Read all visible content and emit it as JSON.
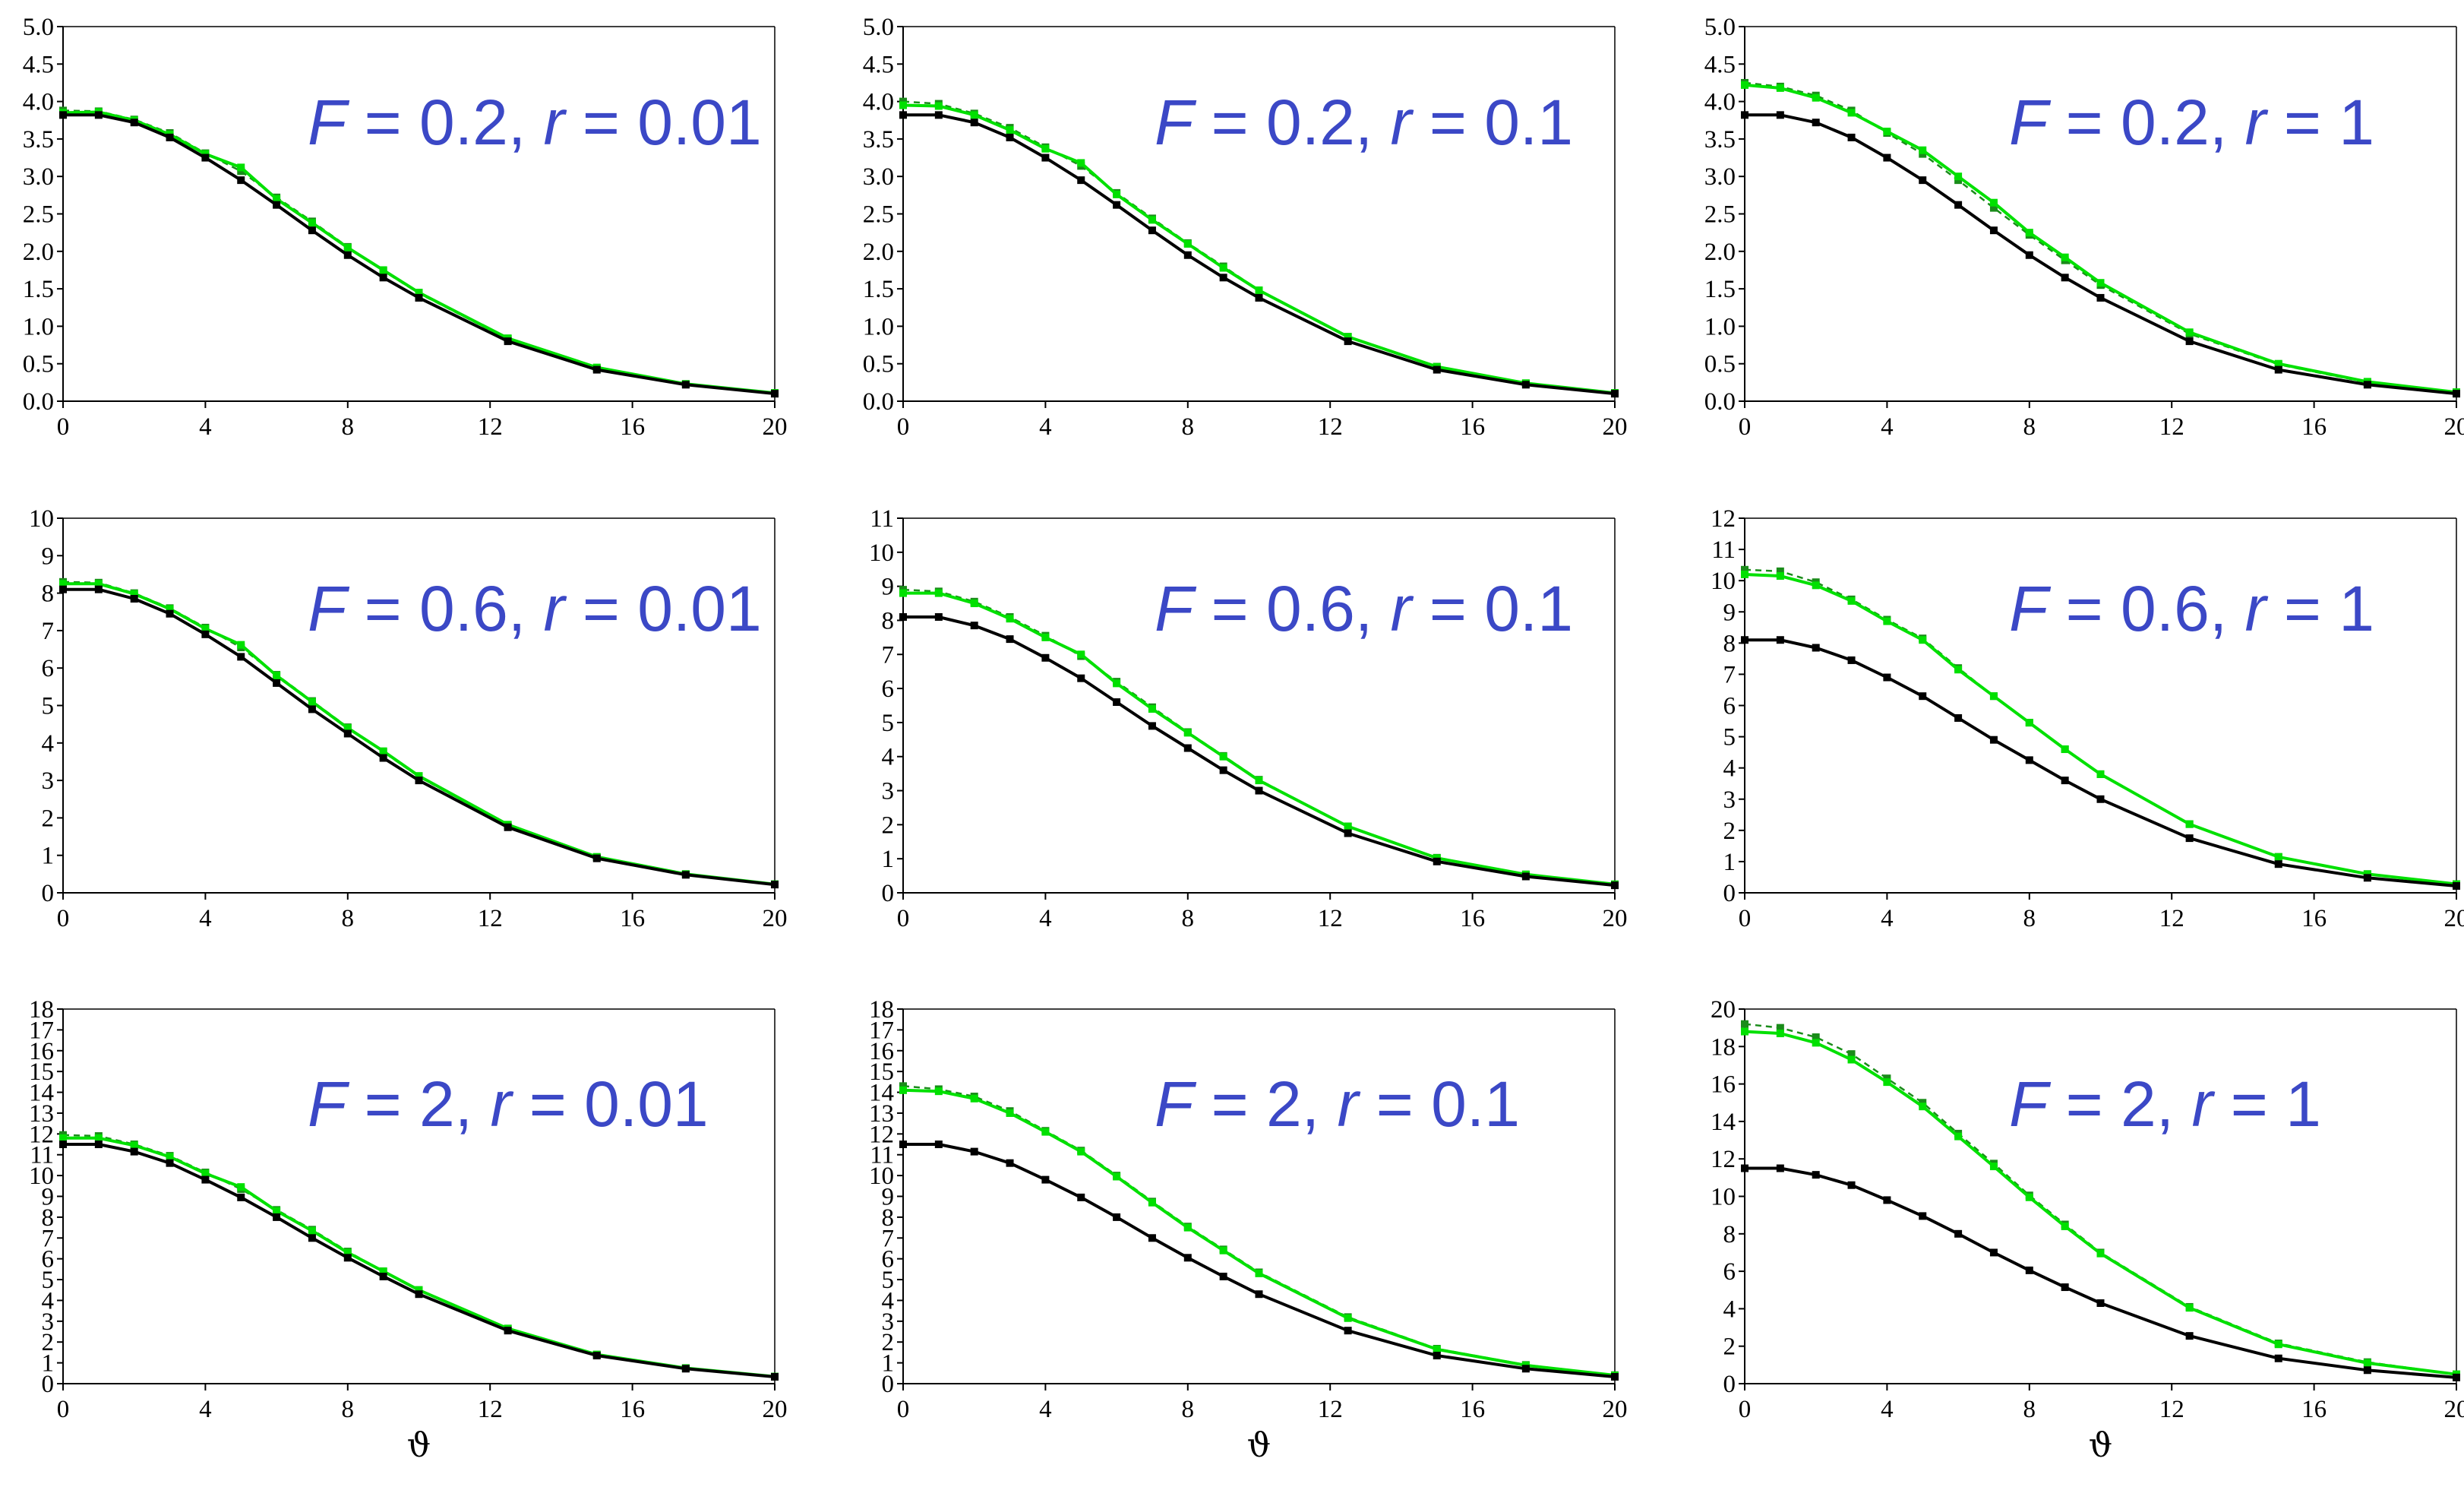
{
  "colors": {
    "baseline": "#000000",
    "model": "#00e000",
    "model_dashed": "#1a8c1a",
    "annotation": "#3b48c6"
  },
  "x_axis_symbol": "ϑ",
  "chart_data": [
    {
      "type": "line",
      "id": "p1",
      "F": "0.2",
      "r": "0.01",
      "title_F": "F",
      "title_eq1": " = 0.2, ",
      "title_r": "r",
      "title_eq2": " = 0.01",
      "xlim": [
        0,
        20
      ],
      "xticks": [
        0,
        4,
        8,
        12,
        16,
        20
      ],
      "ylim": [
        0,
        5
      ],
      "yticks": [
        "0.0",
        "0.5",
        "1.0",
        "1.5",
        "2.0",
        "2.5",
        "3.0",
        "3.5",
        "4.0",
        "4.5",
        "5.0"
      ],
      "x": [
        0,
        1,
        2,
        3,
        4,
        5,
        6,
        7,
        8,
        9,
        10,
        12.5,
        15,
        17.5,
        20
      ],
      "series": [
        {
          "name": "black",
          "values": [
            3.82,
            3.82,
            3.72,
            3.52,
            3.25,
            2.95,
            2.62,
            2.28,
            1.95,
            1.65,
            1.38,
            0.8,
            0.42,
            0.22,
            0.1
          ]
        },
        {
          "name": "green",
          "values": [
            3.85,
            3.86,
            3.75,
            3.56,
            3.3,
            3.12,
            2.7,
            2.38,
            2.05,
            1.75,
            1.45,
            0.84,
            0.45,
            0.23,
            0.11
          ]
        },
        {
          "name": "green-dashed",
          "values": [
            3.88,
            3.87,
            3.76,
            3.58,
            3.31,
            3.07,
            2.72,
            2.4,
            2.06,
            1.74,
            1.44,
            0.83,
            0.44,
            0.23,
            0.11
          ]
        }
      ]
    },
    {
      "type": "line",
      "id": "p2",
      "F": "0.2",
      "r": "0.1",
      "title_F": "F",
      "title_eq1": " = 0.2, ",
      "title_r": "r",
      "title_eq2": " = 0.1",
      "xlim": [
        0,
        20
      ],
      "xticks": [
        0,
        4,
        8,
        12,
        16,
        20
      ],
      "ylim": [
        0,
        5
      ],
      "yticks": [
        "0.0",
        "0.5",
        "1.0",
        "1.5",
        "2.0",
        "2.5",
        "3.0",
        "3.5",
        "4.0",
        "4.5",
        "5.0"
      ],
      "x": [
        0,
        1,
        2,
        3,
        4,
        5,
        6,
        7,
        8,
        9,
        10,
        12.5,
        15,
        17.5,
        20
      ],
      "series": [
        {
          "name": "black",
          "values": [
            3.82,
            3.82,
            3.72,
            3.52,
            3.25,
            2.95,
            2.62,
            2.28,
            1.95,
            1.65,
            1.38,
            0.8,
            0.42,
            0.22,
            0.1
          ]
        },
        {
          "name": "green",
          "values": [
            3.95,
            3.94,
            3.82,
            3.62,
            3.37,
            3.18,
            2.76,
            2.42,
            2.1,
            1.78,
            1.48,
            0.86,
            0.46,
            0.24,
            0.11
          ]
        },
        {
          "name": "green-dashed",
          "values": [
            4.0,
            3.97,
            3.84,
            3.65,
            3.39,
            3.14,
            2.78,
            2.44,
            2.11,
            1.8,
            1.48,
            0.86,
            0.46,
            0.24,
            0.11
          ]
        }
      ]
    },
    {
      "type": "line",
      "id": "p3",
      "F": "0.2",
      "r": "1",
      "title_F": "F",
      "title_eq1": " = 0.2, ",
      "title_r": "r",
      "title_eq2": " = 1",
      "xlim": [
        0,
        20
      ],
      "xticks": [
        0,
        4,
        8,
        12,
        16,
        20
      ],
      "ylim": [
        0,
        5
      ],
      "yticks": [
        "0.0",
        "0.5",
        "1.0",
        "1.5",
        "2.0",
        "2.5",
        "3.0",
        "3.5",
        "4.0",
        "4.5",
        "5.0"
      ],
      "x": [
        0,
        1,
        2,
        3,
        4,
        5,
        6,
        7,
        8,
        9,
        10,
        12.5,
        15,
        17.5,
        20
      ],
      "series": [
        {
          "name": "black",
          "values": [
            3.82,
            3.82,
            3.72,
            3.52,
            3.25,
            2.95,
            2.62,
            2.28,
            1.95,
            1.65,
            1.38,
            0.8,
            0.42,
            0.22,
            0.1
          ]
        },
        {
          "name": "green",
          "values": [
            4.22,
            4.18,
            4.05,
            3.85,
            3.6,
            3.35,
            3.0,
            2.65,
            2.25,
            1.92,
            1.58,
            0.92,
            0.5,
            0.26,
            0.12
          ]
        },
        {
          "name": "green-dashed",
          "values": [
            4.25,
            4.2,
            4.08,
            3.88,
            3.58,
            3.3,
            2.95,
            2.58,
            2.22,
            1.88,
            1.55,
            0.9,
            0.49,
            0.25,
            0.12
          ]
        }
      ]
    },
    {
      "type": "line",
      "id": "p4",
      "F": "0.6",
      "r": "0.01",
      "title_F": "F",
      "title_eq1": " = 0.6, ",
      "title_r": "r",
      "title_eq2": " = 0.01",
      "xlim": [
        0,
        20
      ],
      "xticks": [
        0,
        4,
        8,
        12,
        16,
        20
      ],
      "ylim": [
        0,
        10
      ],
      "yticks": [
        "0",
        "1",
        "2",
        "3",
        "4",
        "5",
        "6",
        "7",
        "8",
        "9",
        "10"
      ],
      "x": [
        0,
        1,
        2,
        3,
        4,
        5,
        6,
        7,
        8,
        9,
        10,
        12.5,
        15,
        17.5,
        20
      ],
      "series": [
        {
          "name": "black",
          "values": [
            8.1,
            8.1,
            7.85,
            7.45,
            6.9,
            6.3,
            5.6,
            4.9,
            4.25,
            3.6,
            3.0,
            1.75,
            0.92,
            0.48,
            0.22
          ]
        },
        {
          "name": "green",
          "values": [
            8.25,
            8.25,
            7.98,
            7.58,
            7.05,
            6.62,
            5.8,
            5.1,
            4.4,
            3.78,
            3.12,
            1.82,
            0.96,
            0.5,
            0.23
          ]
        },
        {
          "name": "green-dashed",
          "values": [
            8.3,
            8.28,
            8.0,
            7.6,
            7.08,
            6.55,
            5.82,
            5.12,
            4.42,
            3.76,
            3.1,
            1.8,
            0.95,
            0.5,
            0.23
          ]
        }
      ]
    },
    {
      "type": "line",
      "id": "p5",
      "F": "0.6",
      "r": "0.1",
      "title_F": "F",
      "title_eq1": " = 0.6, ",
      "title_r": "r",
      "title_eq2": " = 0.1",
      "xlim": [
        0,
        20
      ],
      "xticks": [
        0,
        4,
        8,
        12,
        16,
        20
      ],
      "ylim": [
        0,
        11
      ],
      "yticks": [
        "0",
        "1",
        "2",
        "3",
        "4",
        "5",
        "6",
        "7",
        "8",
        "9",
        "10",
        "11"
      ],
      "x": [
        0,
        1,
        2,
        3,
        4,
        5,
        6,
        7,
        8,
        9,
        10,
        12.5,
        15,
        17.5,
        20
      ],
      "series": [
        {
          "name": "black",
          "values": [
            8.1,
            8.1,
            7.85,
            7.45,
            6.9,
            6.3,
            5.6,
            4.9,
            4.25,
            3.6,
            3.0,
            1.75,
            0.92,
            0.48,
            0.22
          ]
        },
        {
          "name": "green",
          "values": [
            8.8,
            8.8,
            8.5,
            8.05,
            7.5,
            7.0,
            6.15,
            5.4,
            4.7,
            4.0,
            3.3,
            1.95,
            1.02,
            0.54,
            0.25
          ]
        },
        {
          "name": "green-dashed",
          "values": [
            8.9,
            8.85,
            8.55,
            8.1,
            7.55,
            6.95,
            6.2,
            5.45,
            4.72,
            4.02,
            3.32,
            1.95,
            1.03,
            0.54,
            0.25
          ]
        }
      ]
    },
    {
      "type": "line",
      "id": "p6",
      "F": "0.6",
      "r": "1",
      "title_F": "F",
      "title_eq1": " = 0.6, ",
      "title_r": "r",
      "title_eq2": " = 1",
      "xlim": [
        0,
        20
      ],
      "xticks": [
        0,
        4,
        8,
        12,
        16,
        20
      ],
      "ylim": [
        0,
        12
      ],
      "yticks": [
        "0",
        "1",
        "2",
        "3",
        "4",
        "5",
        "6",
        "7",
        "8",
        "9",
        "10",
        "11",
        "12"
      ],
      "x": [
        0,
        1,
        2,
        3,
        4,
        5,
        6,
        7,
        8,
        9,
        10,
        12.5,
        15,
        17.5,
        20
      ],
      "series": [
        {
          "name": "black",
          "values": [
            8.1,
            8.1,
            7.85,
            7.45,
            6.9,
            6.3,
            5.6,
            4.9,
            4.25,
            3.6,
            3.0,
            1.75,
            0.92,
            0.48,
            0.22
          ]
        },
        {
          "name": "green",
          "values": [
            10.2,
            10.15,
            9.85,
            9.35,
            8.7,
            8.1,
            7.15,
            6.3,
            5.45,
            4.6,
            3.8,
            2.2,
            1.15,
            0.6,
            0.28
          ]
        },
        {
          "name": "green-dashed",
          "values": [
            10.35,
            10.3,
            9.95,
            9.4,
            8.75,
            8.15,
            7.2,
            6.3,
            5.45,
            4.6,
            3.8,
            2.2,
            1.15,
            0.6,
            0.28
          ]
        }
      ]
    },
    {
      "type": "line",
      "id": "p7",
      "F": "2",
      "r": "0.01",
      "title_F": "F",
      "title_eq1": " = 2, ",
      "title_r": "r",
      "title_eq2": " = 0.01",
      "xlim": [
        0,
        20
      ],
      "xticks": [
        0,
        4,
        8,
        12,
        16,
        20
      ],
      "ylim": [
        0,
        18
      ],
      "yticks": [
        "0",
        "1",
        "2",
        "3",
        "4",
        "5",
        "6",
        "7",
        "8",
        "9",
        "10",
        "11",
        "12",
        "13",
        "14",
        "15",
        "16",
        "17",
        "18"
      ],
      "x": [
        0,
        1,
        2,
        3,
        4,
        5,
        6,
        7,
        8,
        9,
        10,
        12.5,
        15,
        17.5,
        20
      ],
      "series": [
        {
          "name": "black",
          "values": [
            11.5,
            11.5,
            11.15,
            10.6,
            9.8,
            8.95,
            8.0,
            7.0,
            6.05,
            5.15,
            4.3,
            2.55,
            1.35,
            0.72,
            0.33
          ]
        },
        {
          "name": "green",
          "values": [
            11.8,
            11.8,
            11.45,
            10.9,
            10.1,
            9.45,
            8.3,
            7.35,
            6.3,
            5.4,
            4.5,
            2.65,
            1.4,
            0.75,
            0.34
          ]
        },
        {
          "name": "green-dashed",
          "values": [
            11.95,
            11.9,
            11.5,
            10.95,
            10.15,
            9.35,
            8.35,
            7.4,
            6.35,
            5.4,
            4.5,
            2.65,
            1.4,
            0.75,
            0.34
          ]
        }
      ]
    },
    {
      "type": "line",
      "id": "p8",
      "F": "2",
      "r": "0.1",
      "title_F": "F",
      "title_eq1": " = 2, ",
      "title_r": "r",
      "title_eq2": " = 0.1",
      "xlim": [
        0,
        20
      ],
      "xticks": [
        0,
        4,
        8,
        12,
        16,
        20
      ],
      "ylim": [
        0,
        18
      ],
      "yticks": [
        "0",
        "1",
        "2",
        "3",
        "4",
        "5",
        "6",
        "7",
        "8",
        "9",
        "10",
        "11",
        "12",
        "13",
        "14",
        "15",
        "16",
        "17",
        "18"
      ],
      "x": [
        0,
        1,
        2,
        3,
        4,
        5,
        6,
        7,
        8,
        9,
        10,
        12.5,
        15,
        17.5,
        20
      ],
      "series": [
        {
          "name": "black",
          "values": [
            11.5,
            11.5,
            11.15,
            10.6,
            9.8,
            8.95,
            8.0,
            7.0,
            6.05,
            5.15,
            4.3,
            2.55,
            1.35,
            0.72,
            0.33
          ]
        },
        {
          "name": "green",
          "values": [
            14.1,
            14.05,
            13.7,
            13.0,
            12.1,
            11.15,
            9.95,
            8.7,
            7.5,
            6.4,
            5.3,
            3.15,
            1.65,
            0.88,
            0.4
          ]
        },
        {
          "name": "green-dashed",
          "values": [
            14.3,
            14.15,
            13.8,
            13.1,
            12.15,
            11.2,
            10.0,
            8.75,
            7.55,
            6.45,
            5.35,
            3.2,
            1.68,
            0.9,
            0.41
          ]
        }
      ]
    },
    {
      "type": "line",
      "id": "p9",
      "F": "2",
      "r": "1",
      "title_F": "F",
      "title_eq1": " = 2, ",
      "title_r": "r",
      "title_eq2": " = 1",
      "xlim": [
        0,
        20
      ],
      "xticks": [
        0,
        4,
        8,
        12,
        16,
        20
      ],
      "ylim": [
        0,
        20
      ],
      "yticks": [
        "0",
        "2",
        "4",
        "6",
        "8",
        "10",
        "12",
        "14",
        "16",
        "18",
        "20"
      ],
      "x": [
        0,
        1,
        2,
        3,
        4,
        5,
        6,
        7,
        8,
        9,
        10,
        12.5,
        15,
        17.5,
        20
      ],
      "series": [
        {
          "name": "black",
          "values": [
            11.5,
            11.5,
            11.15,
            10.6,
            9.8,
            8.95,
            8.0,
            7.0,
            6.05,
            5.15,
            4.3,
            2.55,
            1.35,
            0.72,
            0.33
          ]
        },
        {
          "name": "green",
          "values": [
            18.8,
            18.7,
            18.2,
            17.3,
            16.1,
            14.8,
            13.2,
            11.6,
            9.95,
            8.4,
            6.95,
            4.05,
            2.1,
            1.1,
            0.5
          ]
        },
        {
          "name": "green-dashed",
          "values": [
            19.2,
            19.0,
            18.5,
            17.6,
            16.3,
            15.0,
            13.35,
            11.75,
            10.05,
            8.5,
            7.0,
            4.1,
            2.15,
            1.15,
            0.5
          ]
        }
      ]
    }
  ]
}
